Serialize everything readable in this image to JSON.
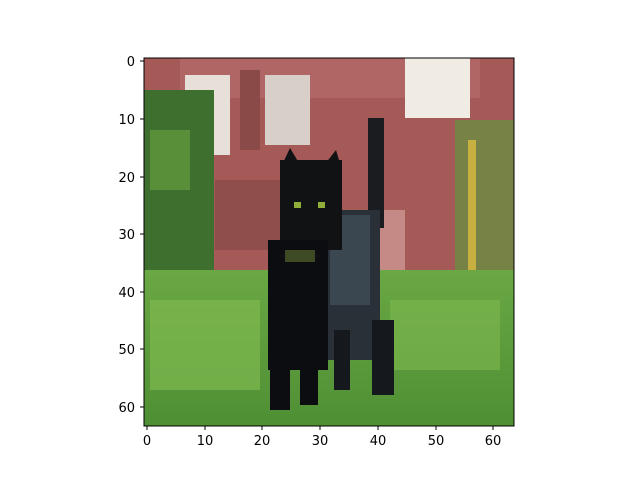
{
  "figure": {
    "image_subject": "pixelated photo of a black cat standing on green grass in front of a red building",
    "axes": {
      "x_ticks": [
        "0",
        "10",
        "20",
        "30",
        "40",
        "50",
        "60"
      ],
      "y_ticks": [
        "0",
        "10",
        "20",
        "30",
        "40",
        "50",
        "60"
      ],
      "x_range": [
        -0.5,
        63.5
      ],
      "y_range": [
        -0.5,
        63.5
      ]
    },
    "colors": {
      "frame": "#000000",
      "background": "#ffffff",
      "wall": "#a65a58",
      "wall_dark": "#8a4a48",
      "window": "#e6e0d8",
      "grass": "#5a9a3a",
      "grass_light": "#7fb94f",
      "foliage": "#3f6f2e",
      "cat": "#101214",
      "cat_highlight": "#2e3a44",
      "cat_eye": "#8fae3a"
    }
  }
}
